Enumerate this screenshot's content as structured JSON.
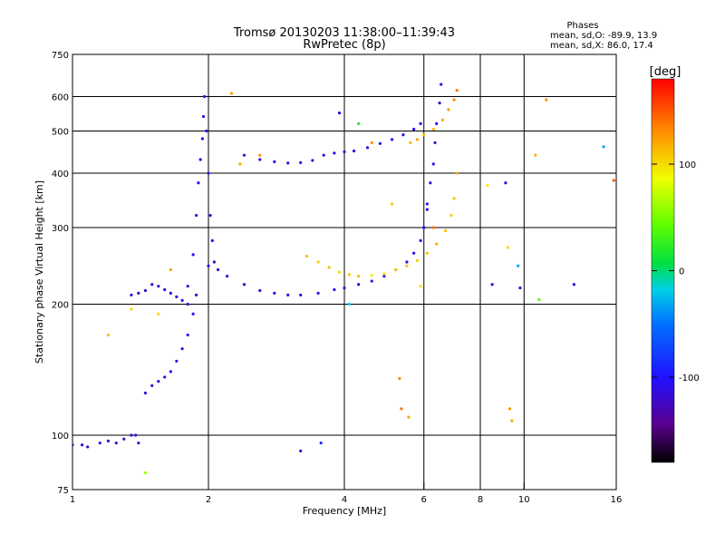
{
  "chart_data": {
    "type": "scatter",
    "title": "Tromsø 20130203 11:38:00–11:39:43",
    "subtitle": "RwPretec (8p)",
    "stats": {
      "heading": "Phases",
      "line_o": "mean, sd,O: -89.9, 13.9",
      "line_x": "mean, sd,X:  86.0, 17.4"
    },
    "xlabel": "Frequency [MHz]",
    "ylabel": "Stationary phase Virtual Height [km]",
    "x_scale": "log",
    "y_scale": "log",
    "xlim": [
      1,
      16
    ],
    "ylim": [
      75,
      750
    ],
    "x_ticks": [
      1,
      2,
      4,
      6,
      8,
      10,
      16
    ],
    "x_tick_labels": [
      "1",
      "2",
      "4",
      "6",
      "8",
      "10",
      "16"
    ],
    "x_grid": [
      1,
      2,
      4,
      6,
      8,
      10,
      16
    ],
    "y_ticks": [
      75,
      100,
      200,
      300,
      400,
      500,
      600,
      750
    ],
    "y_tick_labels": [
      "75",
      "100",
      "200",
      "300",
      "400",
      "500",
      "600",
      "750"
    ],
    "y_grid": [
      100,
      200,
      300,
      400,
      500,
      600
    ],
    "grid": true,
    "colorbar": {
      "label": "[deg]",
      "range": [
        -180,
        180
      ],
      "ticks": [
        100,
        0,
        -100
      ],
      "tick_labels": [
        "100",
        "0",
        "-100"
      ]
    },
    "series": [
      {
        "points": [
          [
            1.0,
            95,
            -120
          ],
          [
            1.05,
            95,
            -115
          ],
          [
            1.08,
            94,
            -125
          ],
          [
            1.15,
            96,
            -110
          ],
          [
            1.2,
            97,
            -120
          ],
          [
            1.25,
            96,
            -105
          ],
          [
            1.3,
            98,
            -115
          ],
          [
            1.35,
            100,
            -110
          ],
          [
            1.38,
            100,
            -120
          ],
          [
            1.4,
            96,
            -110
          ]
        ]
      },
      {
        "points": [
          [
            1.35,
            210,
            -110
          ],
          [
            1.4,
            212,
            -115
          ],
          [
            1.45,
            215,
            -110
          ],
          [
            1.5,
            222,
            -105
          ],
          [
            1.55,
            220,
            -110
          ],
          [
            1.6,
            216,
            -115
          ],
          [
            1.65,
            212,
            -110
          ],
          [
            1.7,
            208,
            -115
          ],
          [
            1.75,
            204,
            -110
          ],
          [
            1.8,
            200,
            -115
          ]
        ]
      },
      {
        "points": [
          [
            1.45,
            125,
            -120
          ],
          [
            1.5,
            130,
            -110
          ],
          [
            1.55,
            133,
            -115
          ],
          [
            1.6,
            136,
            -110
          ],
          [
            1.65,
            140,
            -110
          ],
          [
            1.7,
            148,
            -105
          ],
          [
            1.75,
            158,
            -110
          ],
          [
            1.8,
            170,
            -105
          ],
          [
            1.85,
            190,
            -110
          ],
          [
            1.88,
            210,
            -115
          ]
        ]
      },
      {
        "points": [
          [
            1.8,
            220,
            -110
          ],
          [
            1.85,
            260,
            -105
          ],
          [
            1.88,
            320,
            -110
          ],
          [
            1.9,
            380,
            -105
          ],
          [
            1.92,
            430,
            -110
          ],
          [
            1.94,
            480,
            -105
          ],
          [
            1.95,
            540,
            -110
          ],
          [
            1.96,
            600,
            -100
          ],
          [
            1.98,
            500,
            -110
          ],
          [
            2.0,
            400,
            -105
          ],
          [
            2.02,
            320,
            -110
          ],
          [
            2.04,
            280,
            -105
          ],
          [
            2.06,
            250,
            -110
          ]
        ]
      },
      {
        "points": [
          [
            2.0,
            245,
            -105
          ],
          [
            2.1,
            240,
            -110
          ],
          [
            2.2,
            232,
            -115
          ],
          [
            2.4,
            222,
            -120
          ],
          [
            2.6,
            215,
            -115
          ],
          [
            2.8,
            212,
            -120
          ],
          [
            3.0,
            210,
            -115
          ],
          [
            3.2,
            210,
            -120
          ],
          [
            3.5,
            212,
            -115
          ],
          [
            3.8,
            216,
            -110
          ],
          [
            4.0,
            218,
            -115
          ],
          [
            4.3,
            222,
            -110
          ],
          [
            4.6,
            226,
            -115
          ],
          [
            4.9,
            232,
            -110
          ],
          [
            5.2,
            240,
            -110
          ],
          [
            5.5,
            250,
            -105
          ],
          [
            5.7,
            262,
            -110
          ],
          [
            5.9,
            280,
            -105
          ],
          [
            6.0,
            300,
            -110
          ],
          [
            6.1,
            330,
            -105
          ]
        ]
      },
      {
        "points": [
          [
            2.4,
            440,
            -110
          ],
          [
            2.6,
            430,
            -120
          ],
          [
            2.8,
            425,
            -115
          ],
          [
            3.0,
            422,
            -120
          ],
          [
            3.2,
            423,
            -115
          ],
          [
            3.4,
            428,
            -110
          ],
          [
            3.6,
            440,
            -115
          ],
          [
            3.8,
            445,
            -110
          ],
          [
            4.0,
            448,
            -115
          ],
          [
            4.2,
            450,
            -110
          ],
          [
            4.5,
            458,
            -105
          ],
          [
            4.8,
            468,
            -110
          ],
          [
            5.1,
            478,
            -105
          ],
          [
            5.4,
            490,
            -110
          ],
          [
            5.7,
            505,
            -105
          ],
          [
            5.9,
            520,
            -110
          ]
        ]
      },
      {
        "points": [
          [
            3.3,
            258,
            110
          ],
          [
            3.5,
            250,
            105
          ],
          [
            3.7,
            243,
            110
          ],
          [
            3.9,
            237,
            100
          ],
          [
            4.1,
            234,
            105
          ],
          [
            4.3,
            232,
            110
          ],
          [
            4.6,
            233,
            95
          ],
          [
            4.9,
            235,
            100
          ],
          [
            5.2,
            240,
            105
          ],
          [
            5.5,
            245,
            110
          ],
          [
            5.8,
            252,
            105
          ],
          [
            6.1,
            262,
            110
          ],
          [
            6.4,
            275,
            115
          ],
          [
            6.7,
            295,
            110
          ],
          [
            6.9,
            320,
            105
          ],
          [
            7.0,
            350,
            110
          ],
          [
            7.1,
            400,
            120
          ]
        ]
      },
      {
        "points": [
          [
            6.0,
            300,
            -115
          ],
          [
            6.1,
            340,
            -110
          ],
          [
            6.2,
            380,
            -115
          ],
          [
            6.3,
            420,
            -110
          ],
          [
            6.35,
            470,
            -115
          ],
          [
            6.4,
            520,
            -110
          ],
          [
            6.5,
            580,
            -115
          ],
          [
            6.55,
            640,
            -110
          ]
        ]
      },
      {
        "points": [
          [
            5.6,
            470,
            115
          ],
          [
            5.8,
            478,
            120
          ],
          [
            6.0,
            490,
            110
          ],
          [
            6.3,
            505,
            115
          ],
          [
            6.6,
            530,
            120
          ],
          [
            6.8,
            560,
            125
          ],
          [
            7.0,
            590,
            130
          ],
          [
            7.1,
            620,
            140
          ]
        ]
      },
      {
        "points": [
          [
            1.2,
            170,
            110
          ],
          [
            1.35,
            195,
            100
          ],
          [
            1.45,
            82,
            60
          ],
          [
            1.55,
            190,
            100
          ],
          [
            1.65,
            240,
            120
          ],
          [
            2.25,
            610,
            125
          ],
          [
            2.35,
            420,
            120
          ],
          [
            2.6,
            440,
            130
          ],
          [
            3.2,
            92,
            -110
          ],
          [
            3.55,
            96,
            -90
          ],
          [
            3.9,
            550,
            -110
          ],
          [
            4.1,
            200,
            -20
          ],
          [
            4.3,
            520,
            20
          ],
          [
            4.6,
            470,
            130
          ],
          [
            5.1,
            340,
            110
          ],
          [
            5.3,
            135,
            130
          ],
          [
            5.35,
            115,
            140
          ],
          [
            5.55,
            110,
            120
          ],
          [
            5.9,
            220,
            100
          ],
          [
            6.3,
            300,
            140
          ],
          [
            8.3,
            375,
            95
          ],
          [
            8.5,
            222,
            -110
          ],
          [
            9.1,
            380,
            -110
          ],
          [
            9.2,
            270,
            100
          ],
          [
            9.3,
            115,
            130
          ],
          [
            9.4,
            108,
            120
          ],
          [
            9.7,
            245,
            -30
          ],
          [
            9.8,
            218,
            -120
          ],
          [
            10.6,
            440,
            120
          ],
          [
            10.8,
            205,
            40
          ],
          [
            11.2,
            590,
            130
          ],
          [
            12.9,
            222,
            -110
          ],
          [
            15.0,
            460,
            -30
          ],
          [
            15.8,
            385,
            150
          ]
        ]
      }
    ]
  }
}
